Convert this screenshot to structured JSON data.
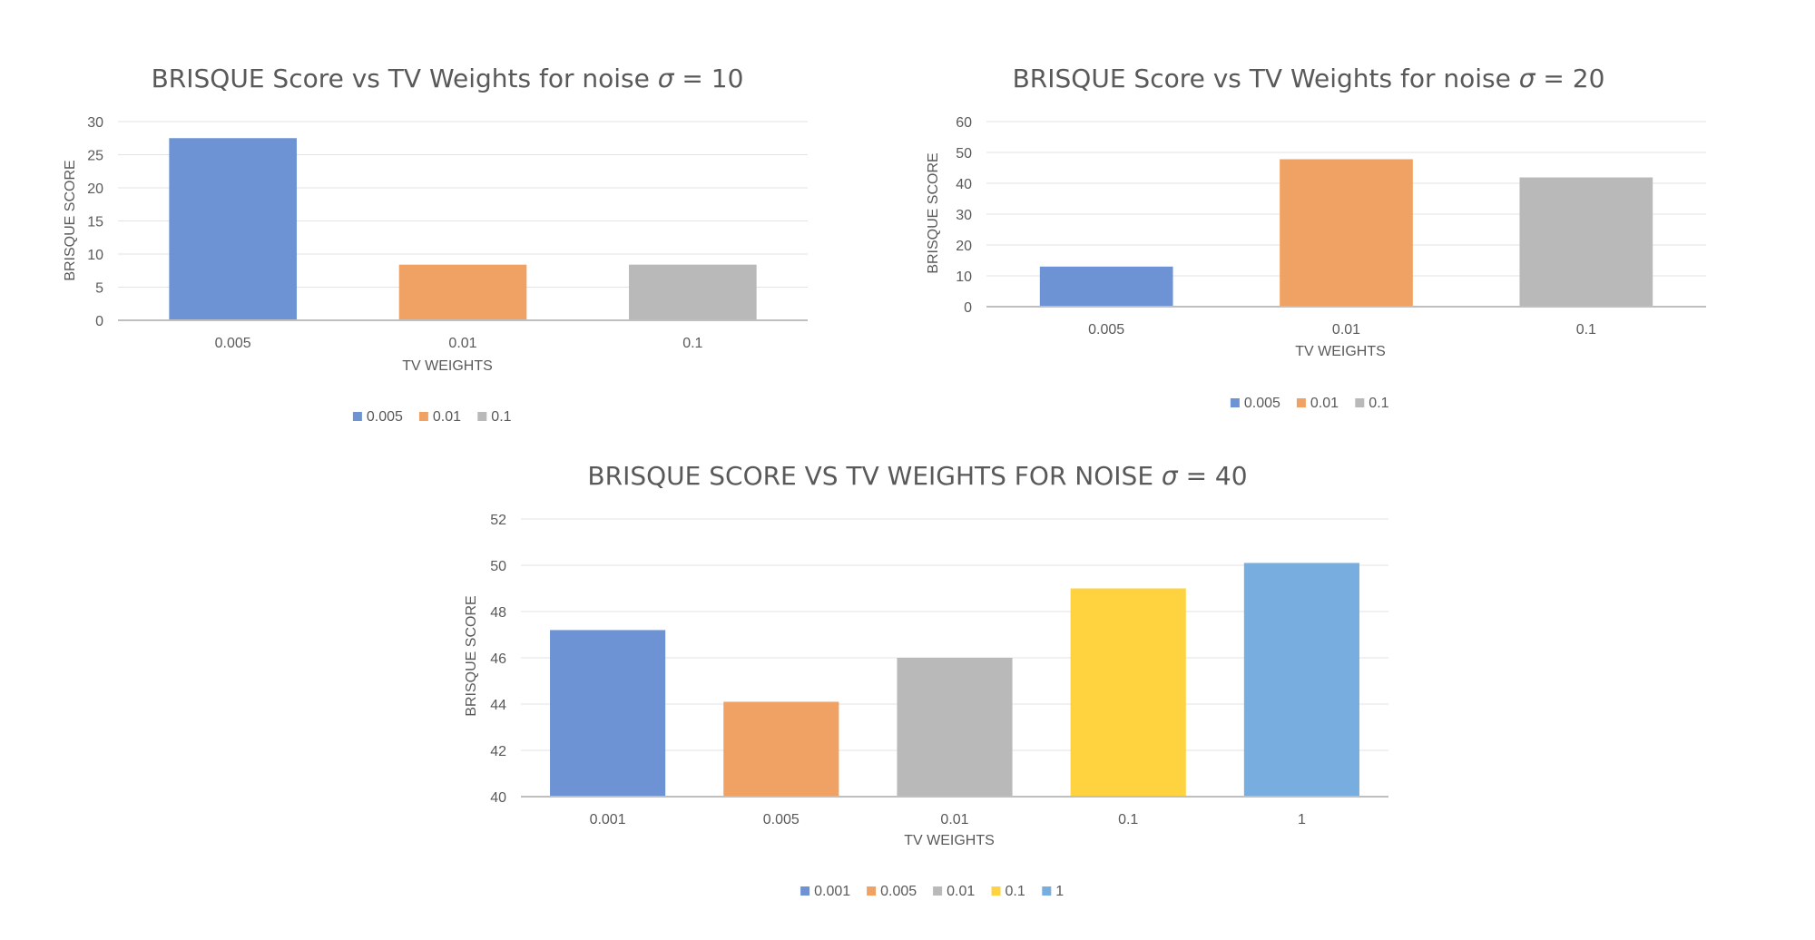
{
  "chart_data": [
    {
      "type": "bar",
      "title_main": "BRISQUE Score vs TV Weights for noise ",
      "title_symbol": "σ",
      "title_suffix": " = 10",
      "xlabel": "TV WEIGHTS",
      "ylabel": "BRISQUE SCORE",
      "categories": [
        "0.005",
        "0.01",
        "0.1"
      ],
      "values": [
        27.5,
        8.4,
        8.4
      ],
      "colors": [
        "#6d93d4",
        "#f0a264",
        "#b9b9b9"
      ],
      "ylim": [
        0,
        30
      ],
      "yticks": [
        0,
        5,
        10,
        15,
        20,
        25,
        30
      ],
      "grid": true,
      "legend": [
        "0.005",
        "0.01",
        "0.1"
      ],
      "legend_position": "bottom"
    },
    {
      "type": "bar",
      "title_main": "BRISQUE Score vs TV Weights for noise ",
      "title_symbol": "σ",
      "title_suffix": " = 20",
      "xlabel": "TV WEIGHTS",
      "ylabel": "BRISQUE SCORE",
      "categories": [
        "0.005",
        "0.01",
        "0.1"
      ],
      "values": [
        13.0,
        47.8,
        41.9
      ],
      "colors": [
        "#6d93d4",
        "#f0a264",
        "#b9b9b9"
      ],
      "ylim": [
        0,
        60
      ],
      "yticks": [
        0,
        10,
        20,
        30,
        40,
        50,
        60
      ],
      "grid": true,
      "legend": [
        "0.005",
        "0.01",
        "0.1"
      ],
      "legend_position": "bottom"
    },
    {
      "type": "bar",
      "title_main": "BRISQUE SCORE VS TV WEIGHTS FOR NOISE ",
      "title_symbol": "σ",
      "title_suffix": " = 40",
      "xlabel": "TV WEIGHTS",
      "ylabel": "BRISQUE SCORE",
      "categories": [
        "0.001",
        "0.005",
        "0.01",
        "0.1",
        "1"
      ],
      "values": [
        47.2,
        44.1,
        46.0,
        49.0,
        50.1
      ],
      "colors": [
        "#6d93d4",
        "#f0a264",
        "#b9b9b9",
        "#ffd23f",
        "#78aedf"
      ],
      "ylim": [
        40,
        52
      ],
      "yticks": [
        40,
        42,
        44,
        46,
        48,
        50,
        52
      ],
      "grid": true,
      "legend": [
        "0.001",
        "0.005",
        "0.01",
        "0.1",
        "1"
      ],
      "legend_position": "bottom"
    }
  ]
}
